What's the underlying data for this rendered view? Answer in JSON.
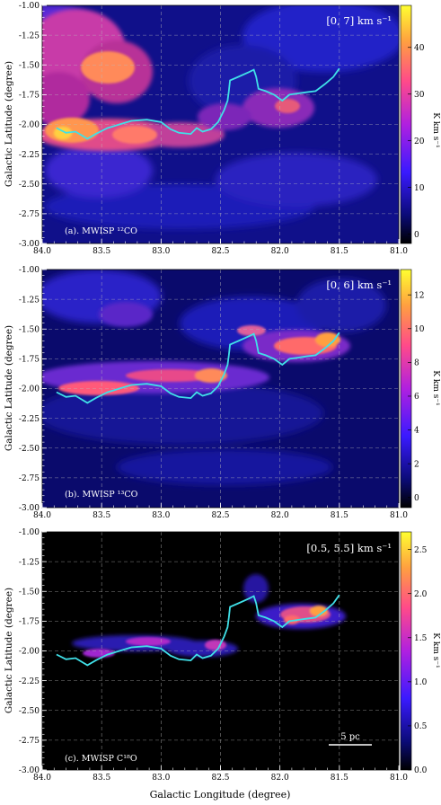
{
  "figure": {
    "xlabel": "Galactic Longitude (degree)",
    "scale_bar_label": "5 pc"
  },
  "chart_data": [
    {
      "type": "heatmap",
      "panel_label": "(a).  MWISP  ¹²CO",
      "velocity_range_label": "[0, 7] km s⁻¹",
      "ylabel": "Galactic Latitude (degree)",
      "colorbar_label": "K km s⁻¹",
      "colormap": "plasma-like",
      "xlim": [
        84.0,
        81.0
      ],
      "ylim": [
        -3.0,
        -1.0
      ],
      "x_ticks": [
        "84.0",
        "83.5",
        "83.0",
        "82.5",
        "82.0",
        "81.5",
        "81.0"
      ],
      "y_ticks": [
        "-1.00",
        "-1.25",
        "-1.50",
        "-1.75",
        "-2.00",
        "-2.25",
        "-2.50",
        "-2.75",
        "-3.00"
      ],
      "colorbar_range": [
        -2,
        49
      ],
      "colorbar_ticks": [
        "0",
        "10",
        "20",
        "30",
        "40"
      ],
      "grid": true
    },
    {
      "type": "heatmap",
      "panel_label": "(b).  MWISP  ¹³CO",
      "velocity_range_label": "[0, 6] km s⁻¹",
      "ylabel": "Galactic Latitude (degree)",
      "colorbar_label": "K km s⁻¹",
      "colormap": "plasma-like",
      "xlim": [
        84.0,
        81.0
      ],
      "ylim": [
        -3.0,
        -1.0
      ],
      "x_ticks": [
        "84.0",
        "83.5",
        "83.0",
        "82.5",
        "82.0",
        "81.5",
        "81.0"
      ],
      "y_ticks": [
        "-1.00",
        "-1.25",
        "-1.50",
        "-1.75",
        "-2.00",
        "-2.25",
        "-2.50",
        "-2.75",
        "-3.00"
      ],
      "colorbar_range": [
        -0.6,
        13.5
      ],
      "colorbar_ticks": [
        "0",
        "2",
        "4",
        "6",
        "8",
        "10",
        "12"
      ],
      "grid": true
    },
    {
      "type": "heatmap",
      "panel_label": "(c).  MWISP  C¹⁸O",
      "velocity_range_label": "[0.5, 5.5] km s⁻¹",
      "ylabel": "Galactic Latitude (degree)",
      "colorbar_label": "K km s⁻¹",
      "colormap": "plasma-like",
      "xlim": [
        84.0,
        81.0
      ],
      "ylim": [
        -3.0,
        -1.0
      ],
      "x_ticks": [
        "84.0",
        "83.5",
        "83.0",
        "82.5",
        "82.0",
        "81.5",
        "81.0"
      ],
      "y_ticks": [
        "-1.00",
        "-1.25",
        "-1.50",
        "-1.75",
        "-2.00",
        "-2.25",
        "-2.50",
        "-2.75",
        "-3.00"
      ],
      "colorbar_range": [
        0.0,
        2.7
      ],
      "colorbar_ticks": [
        "0.0",
        "0.5",
        "1.0",
        "1.5",
        "2.0",
        "2.5"
      ],
      "grid": true
    }
  ],
  "filament_spine": {
    "color": "#40e0e8",
    "points": [
      [
        83.88,
        -2.03
      ],
      [
        83.8,
        -2.07
      ],
      [
        83.72,
        -2.06
      ],
      [
        83.62,
        -2.12
      ],
      [
        83.55,
        -2.08
      ],
      [
        83.45,
        -2.03
      ],
      [
        83.35,
        -2.0
      ],
      [
        83.25,
        -1.97
      ],
      [
        83.12,
        -1.96
      ],
      [
        83.0,
        -1.98
      ],
      [
        82.92,
        -2.04
      ],
      [
        82.85,
        -2.07
      ],
      [
        82.75,
        -2.08
      ],
      [
        82.7,
        -2.03
      ],
      [
        82.65,
        -2.06
      ],
      [
        82.58,
        -2.04
      ],
      [
        82.52,
        -1.98
      ],
      [
        82.47,
        -1.88
      ],
      [
        82.44,
        -1.8
      ],
      [
        82.43,
        -1.72
      ],
      [
        82.42,
        -1.63
      ],
      [
        82.35,
        -1.6
      ],
      [
        82.26,
        -1.56
      ],
      [
        82.22,
        -1.54
      ],
      [
        82.2,
        -1.6
      ],
      [
        82.18,
        -1.7
      ],
      [
        82.12,
        -1.72
      ],
      [
        82.05,
        -1.75
      ],
      [
        81.98,
        -1.8
      ],
      [
        81.92,
        -1.75
      ],
      [
        81.85,
        -1.74
      ],
      [
        81.78,
        -1.73
      ],
      [
        81.7,
        -1.72
      ],
      [
        81.62,
        -1.66
      ],
      [
        81.55,
        -1.6
      ],
      [
        81.5,
        -1.53
      ]
    ]
  }
}
